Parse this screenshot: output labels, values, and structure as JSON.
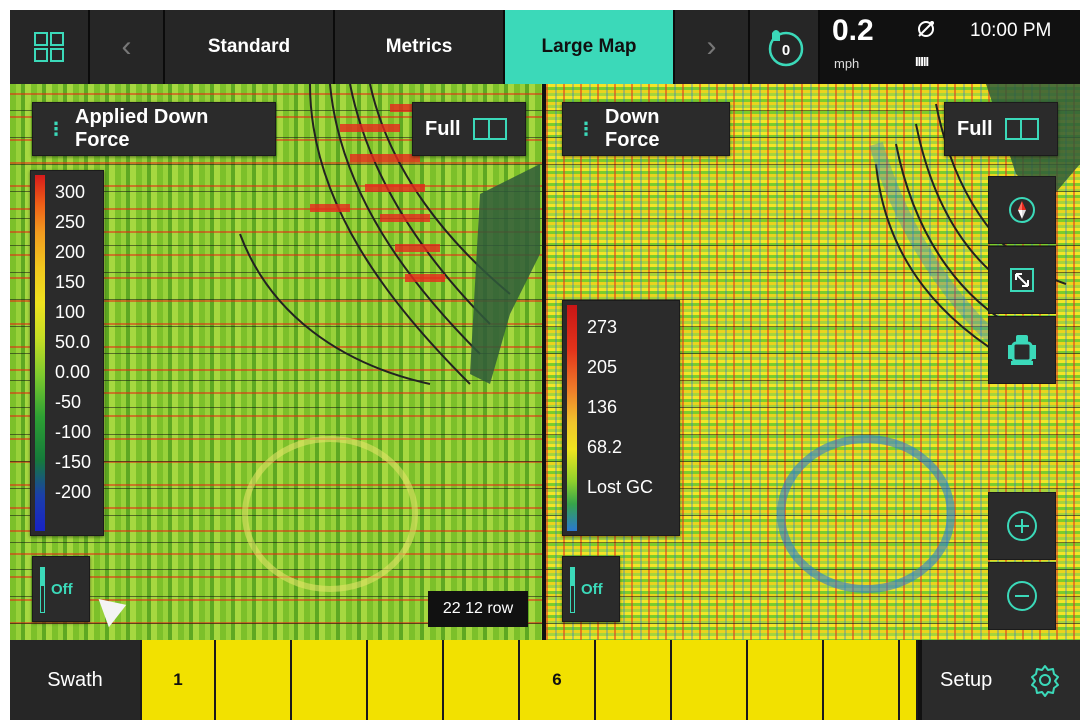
{
  "topbar": {
    "grid_icon": "grid-icon",
    "tabs": [
      {
        "label": "Standard"
      },
      {
        "label": "Metrics"
      },
      {
        "label": "Large Map"
      }
    ],
    "active_tab": "Large Map",
    "alert_count": "0",
    "speed_value": "0.2",
    "speed_unit": "mph",
    "gps_icon": "satellite-icon",
    "signal_bars": "IIIII",
    "time": "10:00 PM",
    "accent_color": "#3bd9b9"
  },
  "left_map": {
    "title": "Applied Down Force",
    "full_label": "Full",
    "legend": [
      "300",
      "250",
      "200",
      "150",
      "100",
      "50.0",
      "0.00",
      "-50",
      "-100",
      "-150",
      "-200"
    ],
    "toggle_label": "Off",
    "row_label": "22 12 row"
  },
  "right_map": {
    "title": "Down Force",
    "full_label": "Full",
    "legend": [
      "273",
      "205",
      "136",
      "68.2",
      "Lost GC"
    ],
    "toggle_label": "Off"
  },
  "bottombar": {
    "swath_label": "Swath",
    "sections": [
      "1",
      "",
      "",
      "",
      "",
      "6",
      "",
      "",
      "",
      "",
      ""
    ],
    "setup_label": "Setup"
  }
}
